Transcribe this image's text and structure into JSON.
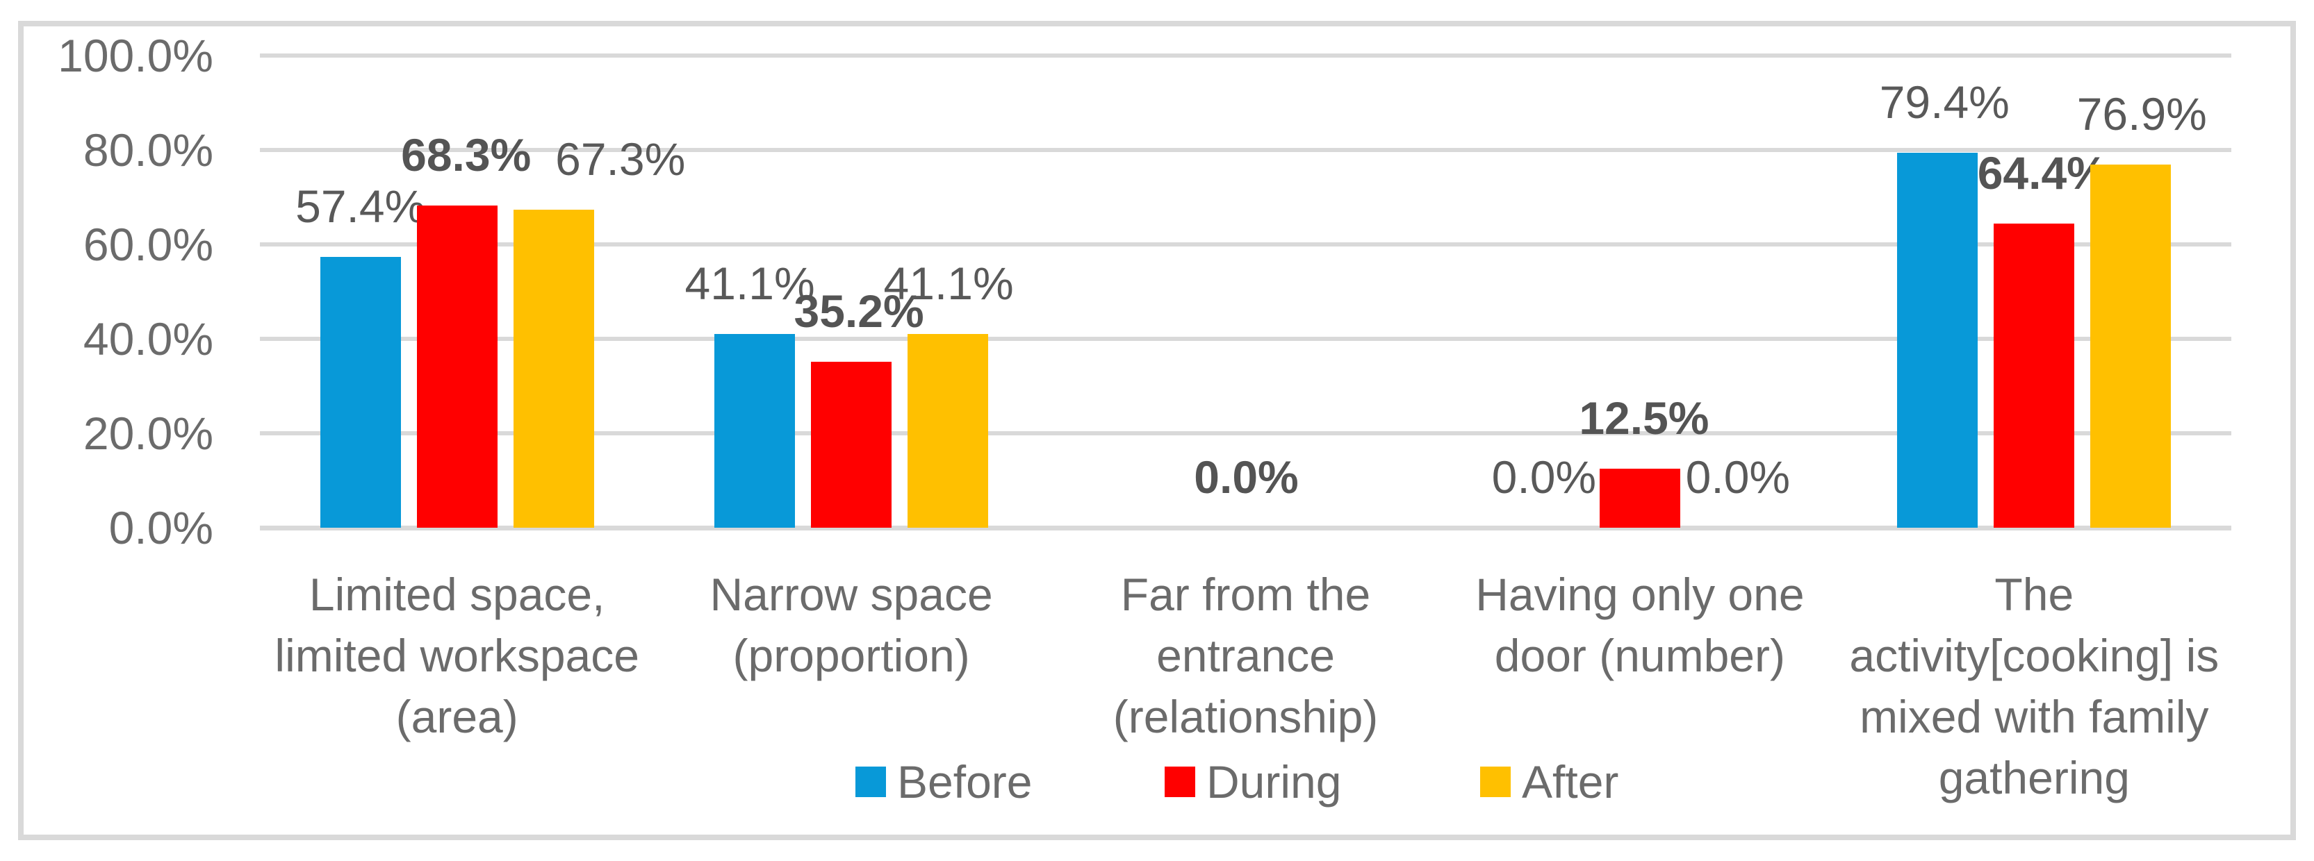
{
  "chart_data": {
    "type": "bar",
    "title": "",
    "categories": [
      "Limited space,\nlimited workspace\n(area)",
      "Narrow space\n(proportion)",
      "Far from the\nentrance\n(relationship)",
      "Having only one\ndoor (number)",
      "The\nactivity[cooking] is\nmixed with family\ngathering"
    ],
    "series": [
      {
        "name": "Before",
        "color": "#0899d8",
        "bold_labels": false,
        "values": [
          57.4,
          41.1,
          0.0,
          0.0,
          79.4
        ],
        "labels": [
          "57.4%",
          "41.1%",
          null,
          "0.0%",
          "79.4%"
        ]
      },
      {
        "name": "During",
        "color": "#ff0000",
        "bold_labels": true,
        "values": [
          68.3,
          35.2,
          0.0,
          12.5,
          64.4
        ],
        "labels": [
          "68.3%",
          "35.2%",
          "0.0%",
          "12.5%",
          "64.4%"
        ]
      },
      {
        "name": "After",
        "color": "#ffc000",
        "bold_labels": false,
        "values": [
          67.3,
          41.1,
          0.0,
          0.0,
          76.9
        ],
        "labels": [
          "67.3%",
          "41.1%",
          null,
          "0.0%",
          "76.9%"
        ]
      }
    ],
    "y_axis": {
      "ticks": [
        {
          "label": "100.0%",
          "value": 100
        },
        {
          "label": "80.0%",
          "value": 80
        },
        {
          "label": "60.0%",
          "value": 60
        },
        {
          "label": "40.0%",
          "value": 40
        },
        {
          "label": "20.0%",
          "value": 20
        },
        {
          "label": "0.0%",
          "value": 0
        }
      ]
    },
    "ylim": [
      0,
      100
    ],
    "grid": true,
    "legend_position": "bottom",
    "colors": {
      "gridline": "#d9d9d9",
      "frame_border": "#d9d9d9",
      "axis_text": "#6b6b6b",
      "data_label_text": "#595959",
      "background": "#ffffff"
    }
  }
}
